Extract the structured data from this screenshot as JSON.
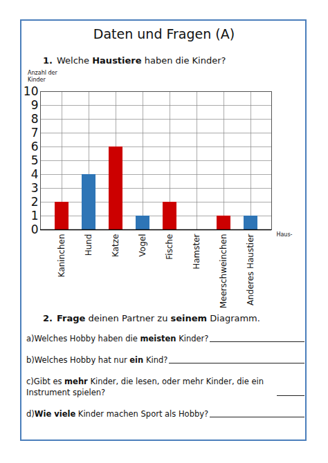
{
  "header": {
    "title": "Daten und Fragen (A)"
  },
  "task_1": {
    "number": "1.",
    "text": [
      {
        "text": "Welche "
      },
      {
        "text": "Haustiere",
        "bold": true
      },
      {
        "text": " haben die Kinder?"
      }
    ]
  },
  "chart_data": {
    "type": "bar",
    "categories": [
      "Kaninchen",
      "Hund",
      "Katze",
      "Vogel",
      "Fische",
      "Hamster",
      "Meerschweinchen",
      "Anderes Haustier"
    ],
    "values": [
      2,
      4,
      6,
      1,
      2,
      0,
      1,
      1
    ],
    "colors": [
      "#cc0000",
      "#2e75b6",
      "#cc0000",
      "#2e75b6",
      "#cc0000",
      "#2e75b6",
      "#cc0000",
      "#2e75b6"
    ],
    "y_label": "Anzahl der Kinder",
    "x_label": "Haus-",
    "ylim": [
      0,
      10
    ],
    "yticks": [
      0,
      1,
      2,
      3,
      4,
      5,
      6,
      7,
      8,
      9,
      10
    ],
    "grid": true
  },
  "task_2": {
    "number": "2.",
    "text": [
      {
        "text": "Frage",
        "bold": true
      },
      {
        "text": " deinen Partner zu "
      },
      {
        "text": "seinem",
        "bold": true
      },
      {
        "text": " Diagramm."
      }
    ],
    "questions": [
      {
        "label": "a)",
        "text": [
          {
            "text": "Welches Hobby haben die "
          },
          {
            "text": "meisten",
            "bold": true
          },
          {
            "text": " Kinder?"
          }
        ]
      },
      {
        "label": "b)",
        "text": [
          {
            "text": "Welches Hobby hat nur "
          },
          {
            "text": "ein",
            "bold": true
          },
          {
            "text": " Kind?"
          }
        ]
      },
      {
        "label": "c)",
        "text": [
          {
            "text": "Gibt es "
          },
          {
            "text": "mehr",
            "bold": true
          },
          {
            "text": " Kinder, die lesen, oder mehr Kinder, die ein Instrument spielen?"
          }
        ]
      },
      {
        "label": "d)",
        "text": [
          {
            "text": "Wie viele",
            "bold": true
          },
          {
            "text": " Kinder machen Sport als Hobby?"
          }
        ]
      }
    ]
  }
}
